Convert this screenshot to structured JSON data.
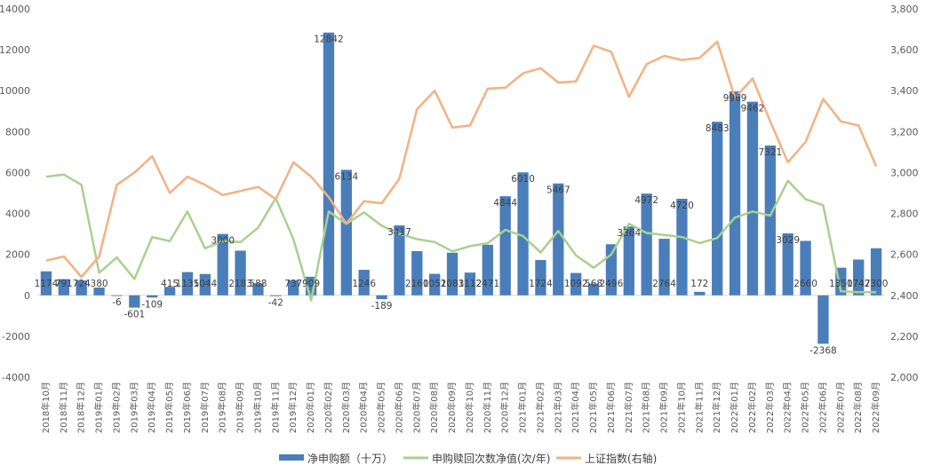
{
  "chart_data": {
    "type": "bar",
    "categories": [
      "2018年10月",
      "2018年11月",
      "2018年12月",
      "2019年01月",
      "2019年02月",
      "2019年03月",
      "2019年04月",
      "2019年05月",
      "2019年06月",
      "2019年07月",
      "2019年08月",
      "2019年09月",
      "2019年10月",
      "2019年11月",
      "2019年12月",
      "2020年01月",
      "2020年02月",
      "2020年03月",
      "2020年04月",
      "2020年05月",
      "2020年06月",
      "2020年07月",
      "2020年08月",
      "2020年09月",
      "2020年10月",
      "2020年11月",
      "2020年12月",
      "2021年01月",
      "2021年02月",
      "2021年03月",
      "2021年04月",
      "2021年05月",
      "2021年06月",
      "2021年07月",
      "2021年08月",
      "2021年09月",
      "2021年10月",
      "2021年11月",
      "2021年12月",
      "2022年01月",
      "2022年02月",
      "2022年03月",
      "2022年04月",
      "2022年05月",
      "2022年06月",
      "2022年07月",
      "2022年08月",
      "2022年09月"
    ],
    "series": [
      {
        "name": "净申购额（十万）",
        "type": "bar",
        "axis": "left",
        "color": "#4a7ebb",
        "values": [
          1174,
          791,
          724,
          380,
          -6,
          -601,
          -109,
          415,
          1135,
          1044,
          3000,
          2183,
          588,
          -42,
          737,
          909,
          12842,
          6134,
          1246,
          -189,
          3417,
          2160,
          1051,
          2083,
          1112,
          2471,
          4844,
          6010,
          1724,
          5467,
          1092,
          568,
          2496,
          3364,
          4972,
          2764,
          4720,
          172,
          8483,
          9969,
          9462,
          7321,
          3029,
          2660,
          -2368,
          1350,
          1747,
          2300
        ],
        "labels": [
          "1174",
          "791",
          "724",
          "380",
          "-6",
          "-601",
          "-109",
          "415",
          "1135",
          "1044",
          "3000",
          "2183",
          "588",
          "-42",
          "737",
          "909",
          "12842",
          "6134",
          "1246",
          "-189",
          "3417",
          "2160",
          "1051",
          "2083",
          "1112",
          "2471",
          "4844",
          "6010",
          "1724",
          "5467",
          "1092",
          "568",
          "2496",
          "3364",
          "4972",
          "2764",
          "4720",
          "172",
          "8483",
          "9969",
          "9462",
          "7321",
          "3029",
          "2660",
          "-2368",
          "1350",
          "1747",
          "2300"
        ]
      },
      {
        "name": "申购赎回次数净值(次/年)",
        "type": "line",
        "axis": "left",
        "color": "#a9d18e",
        "values": [
          5800,
          5900,
          5400,
          1100,
          1850,
          800,
          2850,
          2650,
          4100,
          2300,
          2650,
          2600,
          3300,
          4750,
          2750,
          -250,
          4100,
          3500,
          4050,
          3400,
          3000,
          2750,
          2600,
          2150,
          2400,
          2550,
          3200,
          2900,
          2100,
          3150,
          1950,
          1350,
          2000,
          3500,
          3050,
          2950,
          2850,
          2550,
          2800,
          3800,
          4100,
          3900,
          5600,
          4700,
          4400,
          200,
          150,
          150
        ]
      },
      {
        "name": "上证指数(右轴)",
        "type": "line",
        "axis": "right",
        "color": "#f4b183",
        "values": [
          2570,
          2590,
          2490,
          2590,
          2940,
          3000,
          3080,
          2900,
          2980,
          2940,
          2890,
          2910,
          2930,
          2870,
          3050,
          2980,
          2880,
          2750,
          2860,
          2850,
          2970,
          3310,
          3400,
          3220,
          3230,
          3410,
          3415,
          3485,
          3510,
          3440,
          3445,
          3620,
          3590,
          3370,
          3530,
          3570,
          3550,
          3560,
          3640,
          3365,
          3460,
          3250,
          3050,
          3150,
          3360,
          3250,
          3230,
          3030
        ]
      }
    ],
    "y_left": {
      "min": -4000,
      "max": 14000,
      "ticks": [
        "-4000",
        "-2000",
        "0",
        "2000",
        "4000",
        "6000",
        "8000",
        "10000",
        "12000",
        "14000"
      ]
    },
    "y_right": {
      "min": 2000,
      "max": 3800,
      "ticks": [
        "2,000",
        "2,200",
        "2,400",
        "2,600",
        "2,800",
        "3,000",
        "3,200",
        "3,400",
        "3,600",
        "3,800"
      ]
    },
    "legend_position": "bottom",
    "grid": false
  }
}
